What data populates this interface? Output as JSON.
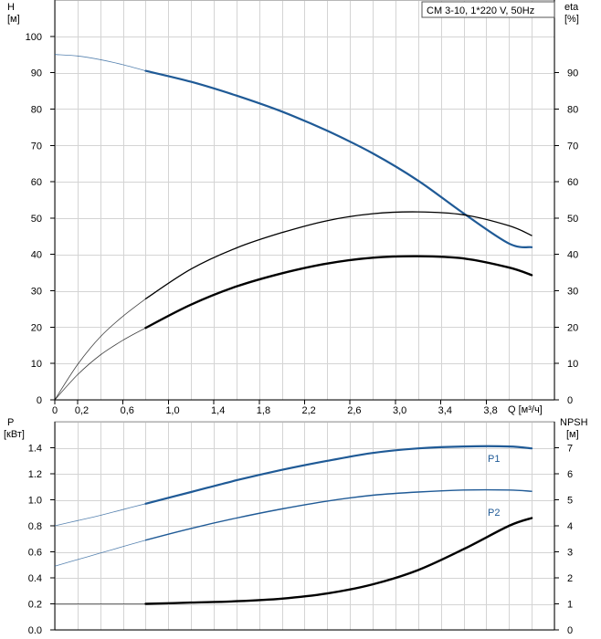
{
  "chart_data": [
    {
      "type": "line",
      "legend_box": "CM 3-10, 1*220 V, 50Hz",
      "legend_placement": "top-right",
      "grid": true,
      "y_left": {
        "label": "H",
        "unit": "[м]",
        "lim": [
          0,
          110
        ],
        "ticks": [
          0,
          10,
          20,
          30,
          40,
          50,
          60,
          70,
          80,
          90,
          100
        ]
      },
      "y_right": {
        "label": "eta",
        "unit": "[%]",
        "lim": [
          0,
          110
        ],
        "ticks": [
          0,
          10,
          20,
          30,
          40,
          50,
          60,
          70,
          80,
          90
        ]
      },
      "x": {
        "label": "Q [м³/ч]",
        "lim": [
          0,
          4.4
        ],
        "ticks": [
          0,
          0.2,
          0.6,
          1.0,
          1.4,
          1.8,
          2.2,
          2.6,
          3.0,
          3.4,
          3.8
        ],
        "tick_labels": [
          "0",
          "0,2",
          "0,6",
          "1,0",
          "1,4",
          "1,8",
          "2,2",
          "2,6",
          "3,0",
          "3,4",
          "3,8"
        ]
      },
      "series": [
        {
          "color": "#1f5a96",
          "axis": "left",
          "width": 2.2,
          "x": [
            0.8,
            1.2,
            1.6,
            2.0,
            2.4,
            2.8,
            3.2,
            3.6,
            4.0,
            4.2
          ],
          "y": [
            90.5,
            87.5,
            83.7,
            79.3,
            74.0,
            67.8,
            60.3,
            51.3,
            43.0,
            42.0
          ],
          "extrap": {
            "x": [
              0,
              0.2,
              0.4,
              0.6,
              0.8
            ],
            "y": [
              95.0,
              94.6,
              93.6,
              92.2,
              90.5
            ]
          }
        },
        {
          "color": "#000000",
          "axis": "right",
          "width": 1.3,
          "x": [
            0.8,
            1.2,
            1.6,
            2.0,
            2.4,
            2.8,
            3.2,
            3.6,
            4.0,
            4.2
          ],
          "y": [
            27.8,
            36.0,
            41.8,
            46.0,
            49.3,
            51.2,
            51.7,
            50.9,
            47.9,
            45.2
          ],
          "extrap": {
            "x": [
              0,
              0.2,
              0.4,
              0.6,
              0.8
            ],
            "y": [
              0,
              9.7,
              17.3,
              23.0,
              27.8
            ]
          }
        },
        {
          "color": "#000000",
          "axis": "right",
          "width": 2.4,
          "x": [
            0.8,
            1.2,
            1.6,
            2.0,
            2.4,
            2.8,
            3.2,
            3.6,
            4.0,
            4.2
          ],
          "y": [
            19.8,
            26.2,
            31.2,
            34.8,
            37.5,
            39.1,
            39.5,
            38.9,
            36.4,
            34.3
          ],
          "extrap": {
            "x": [
              0,
              0.2,
              0.4,
              0.6,
              0.8
            ],
            "y": [
              0,
              6.9,
              12.3,
              16.4,
              19.8
            ]
          }
        }
      ]
    },
    {
      "type": "line",
      "grid": true,
      "y_left": {
        "label": "P",
        "unit": "[кВт]",
        "lim": [
          0,
          1.6
        ],
        "ticks": [
          0.0,
          0.2,
          0.4,
          0.6,
          0.8,
          1.0,
          1.2,
          1.4
        ],
        "tick_labels": [
          "0.0",
          "0.2",
          "0.4",
          "0.6",
          "0.8",
          "1.0",
          "1.2",
          "1.4"
        ]
      },
      "y_right": {
        "label": "NPSH",
        "unit": "[м]",
        "lim": [
          0,
          8
        ],
        "ticks": [
          0,
          1,
          2,
          3,
          4,
          5,
          6,
          7
        ]
      },
      "x": {
        "lim": [
          0,
          4.4
        ]
      },
      "series": [
        {
          "name": "P1",
          "color": "#1f5a96",
          "axis": "left",
          "width": 2.2,
          "x": [
            0.8,
            1.2,
            1.6,
            2.0,
            2.4,
            2.8,
            3.2,
            3.6,
            4.0,
            4.2
          ],
          "y": [
            0.97,
            1.06,
            1.15,
            1.23,
            1.3,
            1.36,
            1.395,
            1.41,
            1.41,
            1.395
          ],
          "extrap": {
            "x": [
              0,
              0.2,
              0.4,
              0.6,
              0.8
            ],
            "y": [
              0.8,
              0.84,
              0.88,
              0.925,
              0.97
            ]
          }
        },
        {
          "name": "P2",
          "color": "#1f5a96",
          "axis": "left",
          "width": 1.4,
          "x": [
            0.8,
            1.2,
            1.6,
            2.0,
            2.4,
            2.8,
            3.2,
            3.6,
            4.0,
            4.2
          ],
          "y": [
            0.69,
            0.78,
            0.86,
            0.93,
            0.99,
            1.035,
            1.06,
            1.075,
            1.075,
            1.065
          ],
          "extrap": {
            "x": [
              0,
              0.2,
              0.4,
              0.6,
              0.8
            ],
            "y": [
              0.49,
              0.54,
              0.59,
              0.64,
              0.69
            ]
          }
        },
        {
          "color": "#000000",
          "axis": "right",
          "width": 2.4,
          "x": [
            0.8,
            1.2,
            1.6,
            2.0,
            2.4,
            2.8,
            3.2,
            3.6,
            4.0,
            4.2
          ],
          "y": [
            1.0,
            1.05,
            1.1,
            1.2,
            1.4,
            1.75,
            2.3,
            3.1,
            4.0,
            4.3
          ],
          "extrap": {
            "x": [
              0,
              0.4,
              0.8
            ],
            "y": [
              1.0,
              1.0,
              1.0
            ]
          }
        }
      ]
    }
  ]
}
